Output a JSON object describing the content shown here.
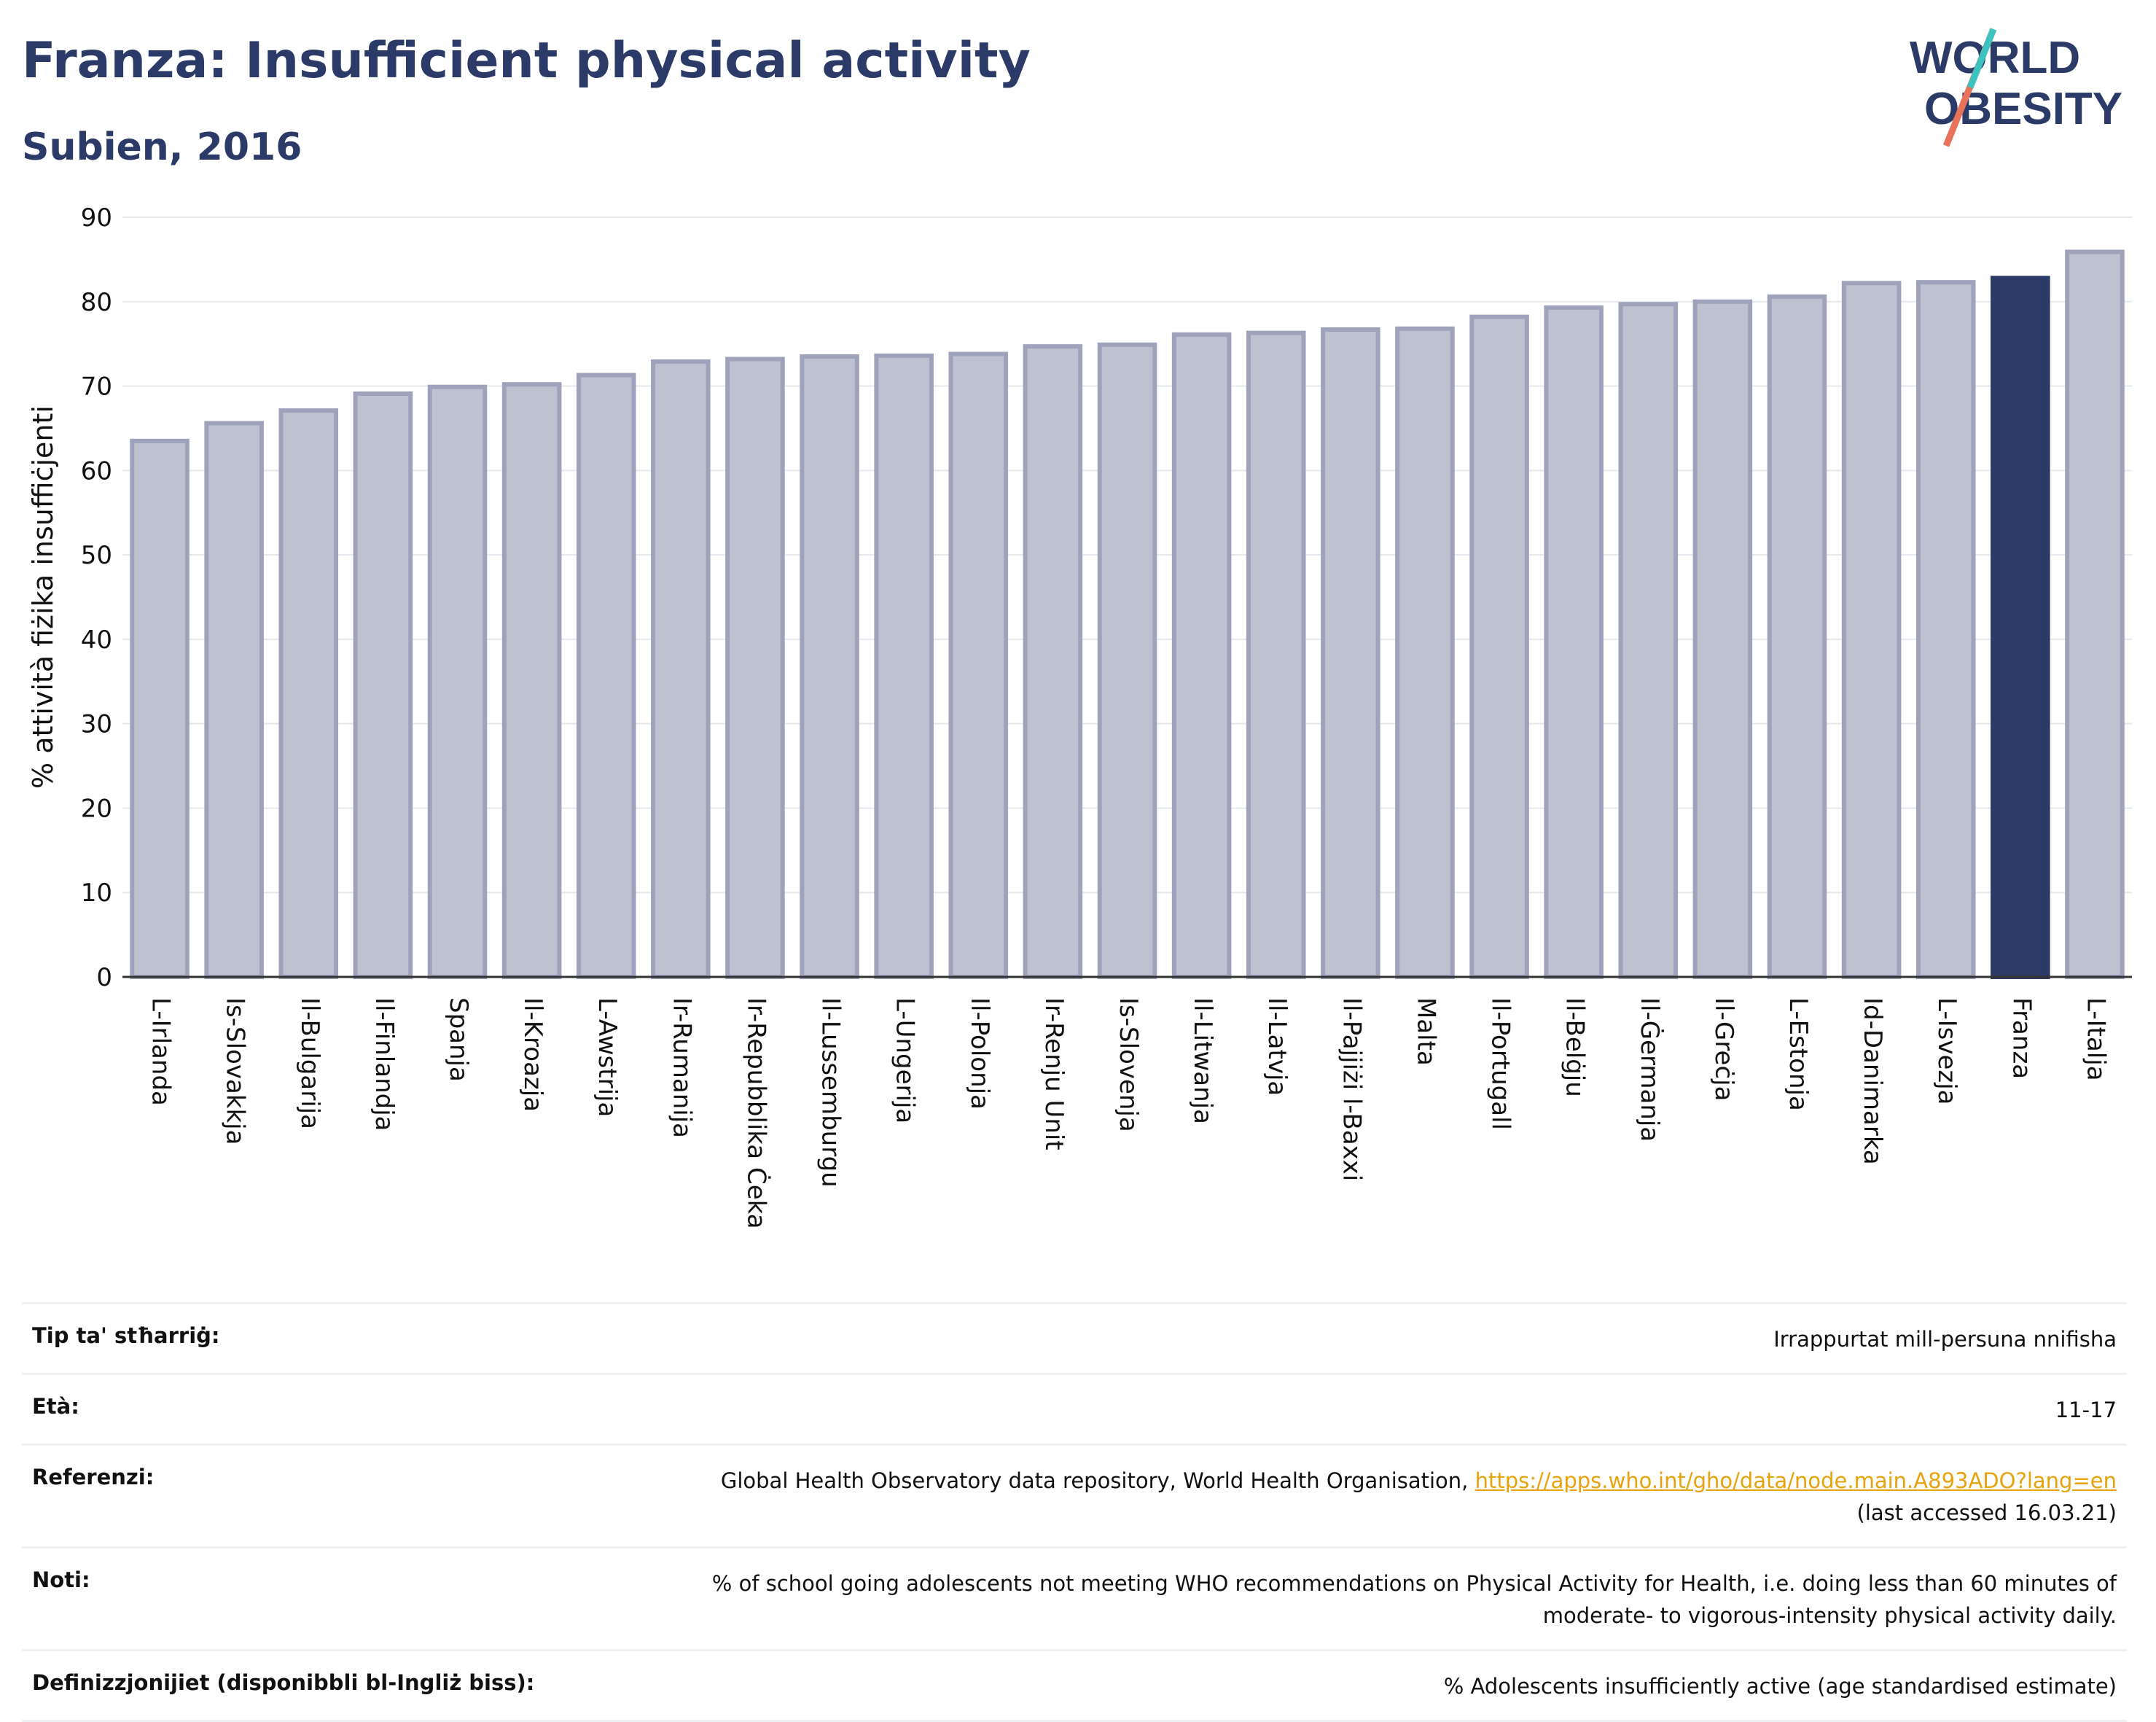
{
  "header": {
    "title": "Franza: Insufficient physical activity",
    "subtitle": "Subien, 2016"
  },
  "logo": {
    "line1": "WORLD",
    "line2": "OBESITY"
  },
  "chart_data": {
    "type": "bar",
    "ylabel": "% attività fiżika insuffiċjenti",
    "ylim": [
      0,
      90
    ],
    "yticks": [
      0,
      10,
      20,
      30,
      40,
      50,
      60,
      70,
      80,
      90
    ],
    "grid": true,
    "highlight": "Franza",
    "colors": {
      "bar": "#bec1cf",
      "bar_edge": "#9ea3bb",
      "highlight": "#2b3a66"
    },
    "categories": [
      "L-Irlanda",
      "Is-Slovakkja",
      "Il-Bulgarija",
      "Il-Finlandja",
      "Spanja",
      "Il-Kroazja",
      "L-Awstrija",
      "Ir-Rumanija",
      "Ir-Repubblika Ċeka",
      "Il-Lussemburgu",
      "L-Ungerija",
      "Il-Polonja",
      "Ir-Renju Unit",
      "Is-Slovenja",
      "Il-Litwanja",
      "Il-Latvja",
      "Il-Pajjiżi l-Baxxi",
      "Malta",
      "Il-Portugall",
      "Il-Belġju",
      "Il-Ġermanja",
      "Il-Greċja",
      "L-Estonja",
      "Id-Danimarka",
      "L-Isvezja",
      "Franza",
      "L-Italja"
    ],
    "values": [
      63.5,
      65.6,
      67.1,
      69.1,
      69.9,
      70.2,
      71.3,
      72.9,
      73.2,
      73.5,
      73.6,
      73.8,
      74.7,
      74.9,
      76.1,
      76.3,
      76.7,
      76.8,
      78.2,
      79.3,
      79.7,
      80.0,
      80.6,
      82.2,
      82.3,
      82.8,
      85.9
    ]
  },
  "meta": [
    {
      "label": "Tip ta' stħarriġ:",
      "value": "Irrappurtat mill-persuna nnifisha"
    },
    {
      "label": "Età:",
      "value": "11-17"
    },
    {
      "label": "Referenzi:",
      "value": "Global Health Observatory data repository, World Health Organisation, ",
      "link": "https://apps.who.int/gho/data/node.main.A893ADO?lang=en",
      "value2": "(last accessed 16.03.21)"
    },
    {
      "label": "Noti:",
      "value": "% of school going adolescents not meeting WHO recommendations on Physical Activity for Health, i.e. doing less than 60 minutes of",
      "value2": "moderate- to vigorous-intensity physical activity daily."
    },
    {
      "label": "Definizzjonijiet (disponibbli bl-Ingliż biss):",
      "value": "% Adolescents insufficiently active (age standardised estimate)"
    }
  ]
}
